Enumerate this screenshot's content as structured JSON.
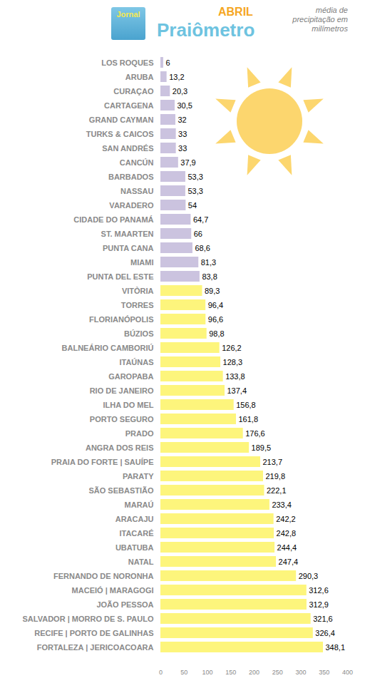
{
  "chart_data": {
    "type": "bar",
    "orientation": "horizontal",
    "title": "Praiômetro",
    "subtitle": "ABRIL",
    "annotations": [
      "Jornal",
      "média de precipitação em milímetros"
    ],
    "categories": [
      "LOS ROQUES",
      "ARUBA",
      "CURAÇAO",
      "CARTAGENA",
      "GRAND CAYMAN",
      "TURKS & CAICOS",
      "SAN ANDRÉS",
      "CANCÚN",
      "BARBADOS",
      "NASSAU",
      "VARADERO",
      "CIDADE DO PANAMÁ",
      "ST. MAARTEN",
      "PUNTA CANA",
      "MIAMI",
      "PUNTA DEL ESTE",
      "VITÒRIA",
      "TORRES",
      "FLORIANÓPOLIS",
      "BÚZIOS",
      "BALNEÁRIO CAMBORIÚ",
      "ITAÚNAS",
      "GAROPABA",
      "RIO DE JANEIRO",
      "ILHA DO MEL",
      "PORTO SEGURO",
      "PRADO",
      "ANGRA DOS REIS",
      "PRAIA DO FORTE | SAUÍPE",
      "PARATY",
      "SÃO SEBASTIÃO",
      "MARAÚ",
      "ARACAJU",
      "ITACARÉ",
      "UBATUBA",
      "NATAL",
      "FERNANDO DE NORONHA",
      "MACEIÓ | MARAGOGI",
      "JOÃO PESSOA",
      "SALVADOR | MORRO DE S. PAULO",
      "RECIFE | PORTO DE GALINHAS",
      "FORTALEZA | JERICOACOARA"
    ],
    "values": [
      6,
      13.2,
      20.3,
      30.5,
      32,
      33,
      33,
      37.9,
      53.3,
      53.3,
      54,
      64.7,
      66,
      68.6,
      81.3,
      83.8,
      89.3,
      96.4,
      96.6,
      98.8,
      126.2,
      128.3,
      133.8,
      137.4,
      156.8,
      161.8,
      176.6,
      189.5,
      213.7,
      219.8,
      222.1,
      233.4,
      242.2,
      242.8,
      244.4,
      247.4,
      290.3,
      312.6,
      312.9,
      321.6,
      326.4,
      348.1
    ],
    "value_labels": [
      "6",
      "13,2",
      "20,3",
      "30,5",
      "32",
      "33",
      "33",
      "37,9",
      "53,3",
      "53,3",
      "54",
      "64,7",
      "66",
      "68,6",
      "81,3",
      "83,8",
      "89,3",
      "96,4",
      "96,6",
      "98,8",
      "126,2",
      "128,3",
      "133,8",
      "137,4",
      "156,8",
      "161,8",
      "176,6",
      "189,5",
      "213,7",
      "219,8",
      "222,1",
      "233,4",
      "242,2",
      "242,8",
      "244,4",
      "247,4",
      "290,3",
      "312,6",
      "312,9",
      "321,6",
      "326,4",
      "348,1"
    ],
    "colors": [
      "#cbc3df",
      "#cbc3df",
      "#cbc3df",
      "#cbc3df",
      "#cbc3df",
      "#cbc3df",
      "#cbc3df",
      "#cbc3df",
      "#cbc3df",
      "#cbc3df",
      "#cbc3df",
      "#cbc3df",
      "#cbc3df",
      "#cbc3df",
      "#cbc3df",
      "#cbc3df",
      "#fdf57c",
      "#fdf57c",
      "#fdf57c",
      "#fdf57c",
      "#fdf57c",
      "#fdf57c",
      "#fdf57c",
      "#fdf57c",
      "#fdf57c",
      "#fdf57c",
      "#fdf57c",
      "#fdf57c",
      "#fdf57c",
      "#fdf57c",
      "#fdf57c",
      "#fdf57c",
      "#fdf57c",
      "#fdf57c",
      "#fdf57c",
      "#fdf57c",
      "#fdf57c",
      "#fdf57c",
      "#fdf57c",
      "#fdf57c",
      "#fdf57c",
      "#fdf57c"
    ],
    "xlim": [
      0,
      400
    ],
    "xticks": [
      0,
      50,
      100,
      150,
      200,
      250,
      300,
      350,
      400
    ],
    "data_labels": true,
    "grid": false
  }
}
